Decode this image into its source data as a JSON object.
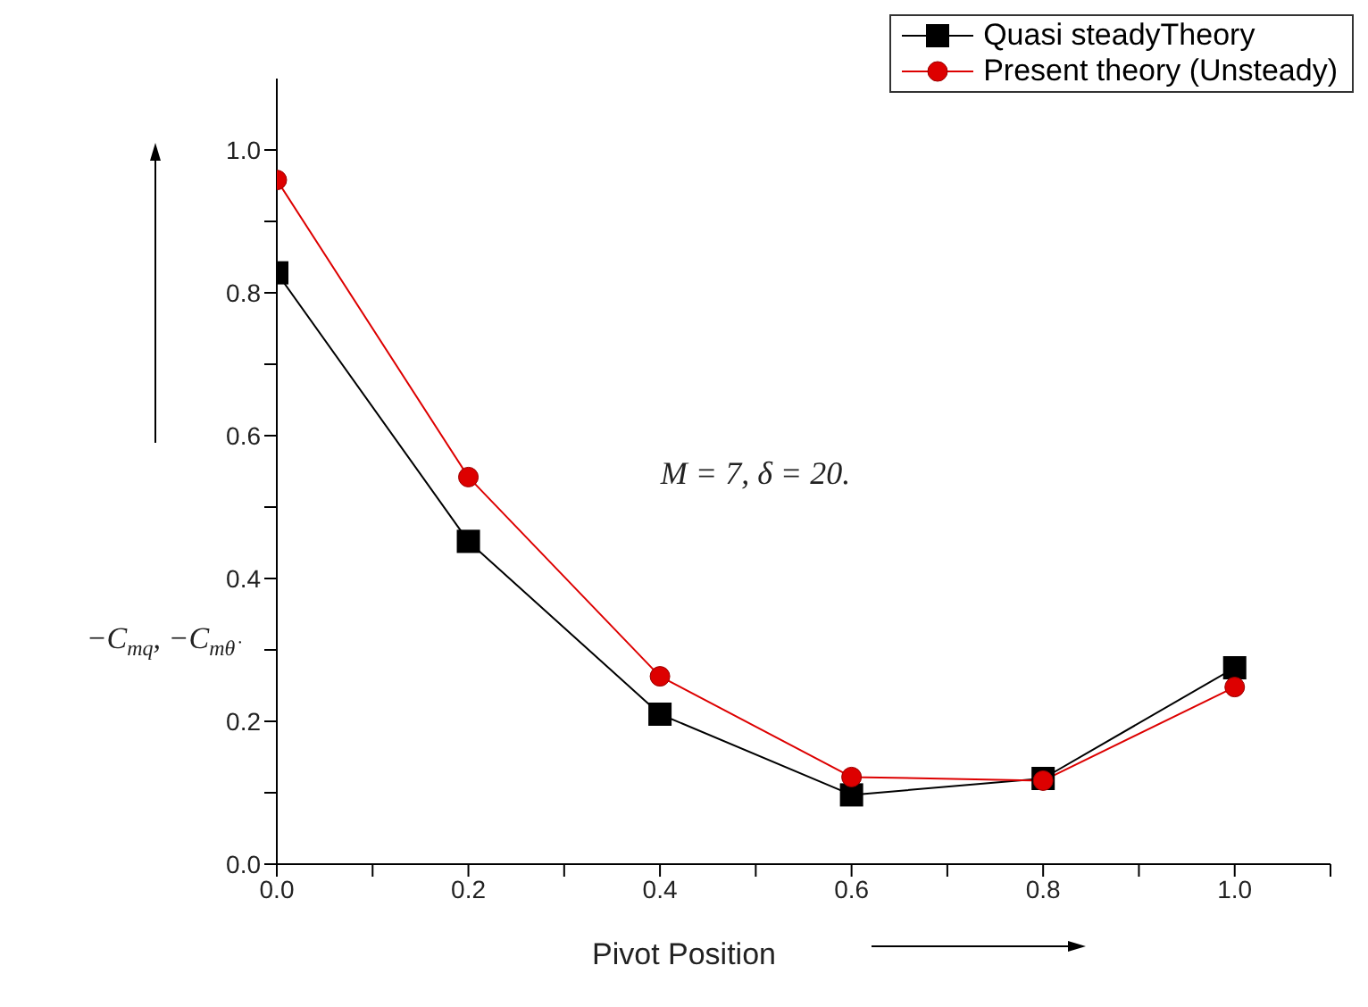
{
  "chart_data": {
    "type": "line",
    "xlabel": "Pivot Position",
    "ylabel": "−C$_{mq}$, −C$_{mθ̇}$",
    "annotations": [
      {
        "text": "M = 7, δ = 20."
      }
    ],
    "x": [
      0,
      0.2,
      0.4,
      0.6,
      0.8,
      1.0
    ],
    "series": [
      {
        "name": "Quasi steadyTheory",
        "color": "#000000",
        "marker": "square",
        "values": [
          0.828,
          0.452,
          0.21,
          0.097,
          0.12,
          0.275
        ]
      },
      {
        "name": "Present theory (Unsteady)",
        "color": "#dd0000",
        "marker": "circle",
        "values": [
          0.958,
          0.542,
          0.263,
          0.122,
          0.117,
          0.248
        ]
      }
    ],
    "xlim": [
      0,
      1.1
    ],
    "ylim": [
      0,
      1.1
    ],
    "xticks": [
      {
        "value": 0,
        "label": "0.0"
      },
      {
        "value": 0.1,
        "label": null
      },
      {
        "value": 0.2,
        "label": "0.2"
      },
      {
        "value": 0.3,
        "label": null
      },
      {
        "value": 0.4,
        "label": "0.4"
      },
      {
        "value": 0.5,
        "label": null
      },
      {
        "value": 0.6,
        "label": "0.6"
      },
      {
        "value": 0.7,
        "label": null
      },
      {
        "value": 0.8,
        "label": "0.8"
      },
      {
        "value": 0.9,
        "label": null
      },
      {
        "value": 1.0,
        "label": "1.0"
      },
      {
        "value": 1.1,
        "label": null
      }
    ],
    "yticks": [
      {
        "value": 0,
        "label": "0.0"
      },
      {
        "value": 0.1,
        "label": null
      },
      {
        "value": 0.2,
        "label": "0.2"
      },
      {
        "value": 0.3,
        "label": null
      },
      {
        "value": 0.4,
        "label": "0.4"
      },
      {
        "value": 0.5,
        "label": null
      },
      {
        "value": 0.6,
        "label": "0.6"
      },
      {
        "value": 0.7,
        "label": null
      },
      {
        "value": 0.8,
        "label": "0.8"
      },
      {
        "value": 0.9,
        "label": null
      },
      {
        "value": 1.0,
        "label": "1.0"
      }
    ],
    "grid": false,
    "legend": "top right",
    "line_style": "solid"
  }
}
